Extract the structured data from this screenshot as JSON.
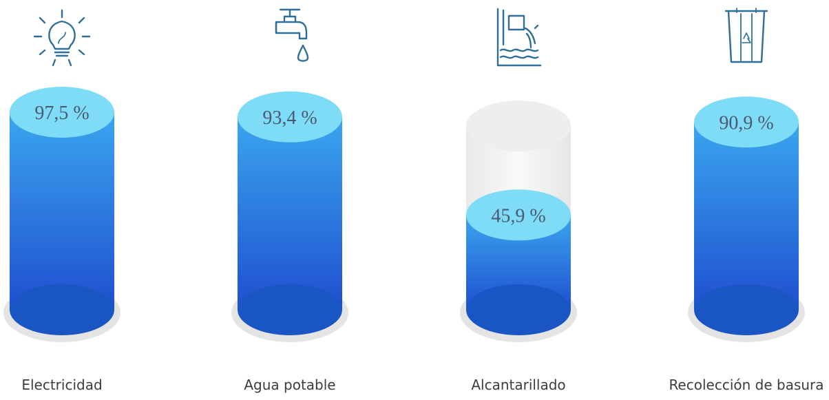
{
  "chart_data": {
    "type": "bar",
    "title": "",
    "categories": [
      "Electricidad",
      "Agua potable",
      "Alcantarillado",
      "Recolección de basura"
    ],
    "values": [
      97.5,
      93.4,
      45.9,
      90.9
    ],
    "value_labels": [
      "97,5 %",
      "93,4 %",
      "45,9 %",
      "90,9 %"
    ],
    "icons": [
      "lightbulb-icon",
      "water-tap-icon",
      "sewer-pipe-icon",
      "recycle-bin-icon"
    ],
    "ylim": [
      0,
      100
    ],
    "xlabel": "",
    "ylabel": "",
    "grid": false,
    "colors": {
      "fill_top": "#3aa6ee",
      "fill_bottom": "#1f4fd0",
      "surface": "#7fdcf6",
      "base": "#1a55c4",
      "glass": "#ececec",
      "icon": "#2f6f97"
    }
  }
}
